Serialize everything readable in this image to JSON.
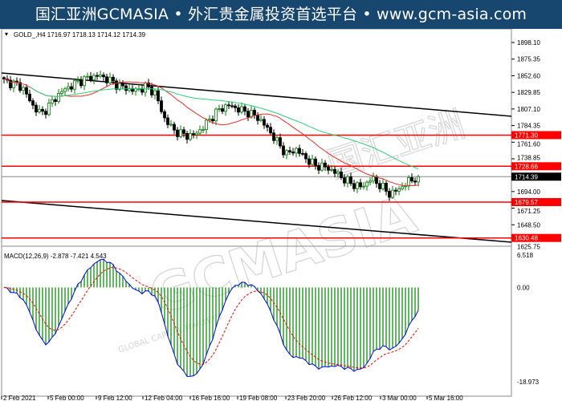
{
  "banner": {
    "text": "国汇亚洲GCMASIA • 外汇贵金属投资首选平台 • www.gcm-asia.com"
  },
  "watermark": {
    "text": "GCMASIA",
    "cn_text": "国汇亚洲",
    "sub_text": "GLOBAL CAPITAL MARKETS"
  },
  "chart_data": {
    "type": "candlestick",
    "symbol_header": "GOLD_,H4",
    "ohlc_header": {
      "open": "1716.97",
      "high": "1718.13",
      "low": "1714.12",
      "close": "1714.39"
    },
    "current_price": "1714.39",
    "price_ticks": [
      "1898.10",
      "1875.35",
      "1852.60",
      "1829.85",
      "1807.10",
      "1784.35",
      "1761.60",
      "1738.85",
      "1694.00",
      "1671.25",
      "1648.50",
      "1625.75"
    ],
    "ylim": [
      1625.75,
      1898.1
    ],
    "horizontal_levels": [
      {
        "label": "1771.30",
        "value": 1771.3,
        "color": "#ff0000"
      },
      {
        "label": "1728.66",
        "value": 1728.66,
        "color": "#ff0000"
      },
      {
        "label": "1679.57",
        "value": 1679.57,
        "color": "#ff0000"
      },
      {
        "label": "1630.48",
        "value": 1630.48,
        "color": "#ff0000"
      }
    ],
    "x_ticks": [
      "2 Feb 2021",
      "5 Feb 00:00",
      "9 Feb 12:00",
      "12 Feb 04:00",
      "16 Feb 16:00",
      "19 Feb 08:00",
      "23 Feb 20:00",
      "26 Feb 12:00",
      "3 Mar 00:00",
      "5 Mar 16:00"
    ],
    "closes_approx": [
      1845,
      1842,
      1836,
      1812,
      1800,
      1815,
      1830,
      1838,
      1845,
      1850,
      1853,
      1848,
      1840,
      1835,
      1832,
      1838,
      1830,
      1795,
      1778,
      1772,
      1770,
      1780,
      1795,
      1808,
      1812,
      1806,
      1802,
      1795,
      1780,
      1762,
      1745,
      1752,
      1740,
      1730,
      1728,
      1722,
      1712,
      1704,
      1700,
      1712,
      1702,
      1690,
      1698,
      1708,
      1714.39
    ],
    "moving_averages": [
      {
        "color": "#e8302c",
        "period": 20
      },
      {
        "color": "#2ecf7a",
        "period": 50
      }
    ],
    "candle_up_color": "#008000",
    "candle_down_color": "#000000",
    "macd": {
      "label": "MACD(12,26,9) -2.878 -7.421 4.543",
      "ticks": [
        "6.518",
        "0.00",
        "-18.973"
      ],
      "ylim": [
        -18.973,
        6.518
      ],
      "histogram_color": "#2ca02c",
      "macd_line_color": "#0000ff",
      "signal_line_color": "#ff0000"
    }
  }
}
